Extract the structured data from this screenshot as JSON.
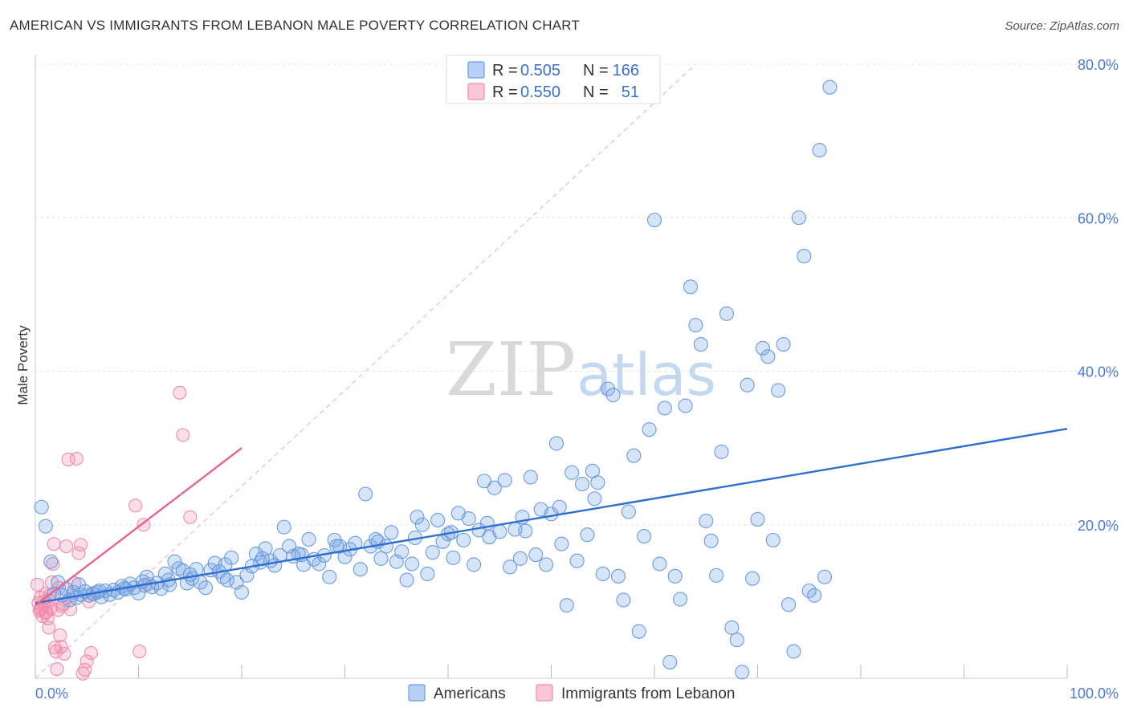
{
  "header": {
    "title": "AMERICAN VS IMMIGRANTS FROM LEBANON MALE POVERTY CORRELATION CHART",
    "source": "Source: ZipAtlas.com"
  },
  "watermark": {
    "zip": "ZIP",
    "atlas": "atlas"
  },
  "legend": {
    "rows": [
      {
        "r_label": "R =",
        "r_value": "0.505",
        "n_label": "N =",
        "n_value": "166",
        "color": "#6a9be0"
      },
      {
        "r_label": "R =",
        "r_value": "0.550",
        "n_label": "N =",
        "n_value": "51",
        "color": "#f08cab"
      }
    ]
  },
  "chart_data": {
    "type": "scatter",
    "title": "AMERICAN VS IMMIGRANTS FROM LEBANON MALE POVERTY CORRELATION CHART",
    "xlabel": "",
    "ylabel": "Male Poverty",
    "xlim": [
      0,
      100
    ],
    "ylim": [
      0,
      80
    ],
    "x_tick_labels": [
      "0.0%",
      "100.0%"
    ],
    "y_ticks": [
      20,
      40,
      60,
      80
    ],
    "y_tick_labels": [
      "20.0%",
      "40.0%",
      "60.0%",
      "80.0%"
    ],
    "colors": {
      "americans": "#6a9be0",
      "lebanon": "#f08cab",
      "americans_line": "#2f6fd0",
      "lebanon_line": "#e8648f"
    },
    "series": [
      {
        "name": "Americans",
        "r": 0.505,
        "n": 166,
        "trend": {
          "x": [
            0,
            100
          ],
          "y": [
            9.8,
            32.5
          ]
        },
        "points": [
          [
            0.6,
            22.3
          ],
          [
            1.0,
            19.8
          ],
          [
            1.5,
            15.2
          ],
          [
            1.8,
            11.0
          ],
          [
            2.2,
            12.5
          ],
          [
            2.6,
            10.8
          ],
          [
            3.0,
            11.6
          ],
          [
            3.3,
            10.2
          ],
          [
            3.7,
            11.2
          ],
          [
            4.0,
            10.5
          ],
          [
            4.4,
            10.9
          ],
          [
            4.8,
            11.3
          ],
          [
            5.2,
            10.8
          ],
          [
            5.6,
            11.0
          ],
          [
            6.0,
            11.2
          ],
          [
            6.4,
            10.6
          ],
          [
            6.8,
            11.4
          ],
          [
            7.2,
            10.9
          ],
          [
            7.6,
            11.5
          ],
          [
            8.0,
            11.2
          ],
          [
            8.4,
            12.0
          ],
          [
            8.8,
            11.6
          ],
          [
            9.2,
            12.3
          ],
          [
            9.6,
            11.8
          ],
          [
            10.0,
            11.1
          ],
          [
            10.4,
            12.6
          ],
          [
            10.8,
            13.2
          ],
          [
            11.3,
            11.9
          ],
          [
            11.8,
            12.4
          ],
          [
            12.2,
            11.7
          ],
          [
            12.6,
            13.6
          ],
          [
            13.0,
            12.2
          ],
          [
            13.5,
            15.2
          ],
          [
            13.9,
            14.3
          ],
          [
            14.3,
            14.0
          ],
          [
            14.7,
            12.4
          ],
          [
            15.2,
            13.0
          ],
          [
            15.6,
            14.2
          ],
          [
            16.0,
            12.5
          ],
          [
            16.5,
            11.8
          ],
          [
            17.0,
            14.1
          ],
          [
            17.4,
            15.0
          ],
          [
            17.8,
            13.9
          ],
          [
            18.2,
            13.2
          ],
          [
            18.6,
            12.8
          ],
          [
            19.0,
            15.7
          ],
          [
            19.5,
            12.5
          ],
          [
            20.0,
            11.2
          ],
          [
            20.5,
            13.4
          ],
          [
            21.0,
            14.6
          ],
          [
            21.4,
            16.2
          ],
          [
            21.8,
            15.1
          ],
          [
            22.3,
            16.9
          ],
          [
            22.8,
            15.3
          ],
          [
            23.2,
            14.7
          ],
          [
            23.7,
            16.0
          ],
          [
            24.1,
            19.7
          ],
          [
            24.6,
            17.2
          ],
          [
            25.0,
            15.9
          ],
          [
            25.5,
            16.2
          ],
          [
            26.0,
            14.8
          ],
          [
            26.5,
            18.1
          ],
          [
            27.0,
            15.5
          ],
          [
            27.5,
            14.9
          ],
          [
            28.0,
            16.0
          ],
          [
            28.5,
            13.2
          ],
          [
            29.0,
            18.0
          ],
          [
            29.5,
            17.2
          ],
          [
            30.0,
            15.8
          ],
          [
            30.5,
            16.8
          ],
          [
            31.0,
            17.6
          ],
          [
            31.5,
            14.2
          ],
          [
            32.0,
            24.0
          ],
          [
            32.5,
            17.2
          ],
          [
            33.0,
            18.1
          ],
          [
            33.5,
            15.6
          ],
          [
            34.0,
            17.2
          ],
          [
            34.5,
            19.0
          ],
          [
            35.0,
            15.2
          ],
          [
            35.5,
            16.5
          ],
          [
            36.0,
            12.8
          ],
          [
            36.5,
            14.9
          ],
          [
            37.0,
            21.0
          ],
          [
            37.5,
            20.0
          ],
          [
            38.0,
            13.6
          ],
          [
            38.5,
            16.4
          ],
          [
            39.0,
            20.6
          ],
          [
            39.5,
            17.8
          ],
          [
            40.0,
            18.8
          ],
          [
            40.5,
            15.7
          ],
          [
            41.0,
            21.5
          ],
          [
            41.5,
            18.0
          ],
          [
            42.0,
            20.8
          ],
          [
            42.5,
            14.8
          ],
          [
            43.0,
            19.3
          ],
          [
            43.5,
            25.7
          ],
          [
            44.0,
            18.4
          ],
          [
            44.5,
            24.8
          ],
          [
            45.0,
            19.1
          ],
          [
            45.5,
            25.8
          ],
          [
            46.0,
            14.5
          ],
          [
            46.5,
            19.4
          ],
          [
            47.0,
            15.6
          ],
          [
            47.5,
            19.2
          ],
          [
            48.0,
            26.2
          ],
          [
            48.5,
            16.1
          ],
          [
            49.0,
            22.0
          ],
          [
            49.5,
            14.8
          ],
          [
            50.0,
            21.4
          ],
          [
            50.5,
            30.6
          ],
          [
            51.0,
            17.5
          ],
          [
            51.5,
            9.5
          ],
          [
            52.0,
            26.8
          ],
          [
            52.5,
            15.3
          ],
          [
            53.0,
            25.3
          ],
          [
            53.5,
            18.7
          ],
          [
            54.0,
            27.0
          ],
          [
            54.5,
            25.5
          ],
          [
            55.0,
            13.6
          ],
          [
            55.5,
            37.7
          ],
          [
            56.0,
            36.9
          ],
          [
            56.5,
            13.3
          ],
          [
            57.0,
            10.2
          ],
          [
            57.5,
            21.7
          ],
          [
            58.0,
            29.0
          ],
          [
            58.5,
            6.1
          ],
          [
            59.0,
            18.5
          ],
          [
            59.5,
            32.4
          ],
          [
            60.0,
            59.7
          ],
          [
            60.5,
            14.9
          ],
          [
            61.0,
            35.2
          ],
          [
            61.5,
            2.1
          ],
          [
            62.0,
            13.3
          ],
          [
            62.5,
            10.3
          ],
          [
            63.0,
            35.5
          ],
          [
            63.5,
            51.0
          ],
          [
            64.0,
            46.0
          ],
          [
            64.5,
            43.5
          ],
          [
            65.0,
            20.5
          ],
          [
            65.5,
            17.9
          ],
          [
            66.0,
            13.4
          ],
          [
            66.5,
            29.5
          ],
          [
            67.0,
            47.5
          ],
          [
            67.5,
            6.6
          ],
          [
            68.0,
            5.0
          ],
          [
            68.5,
            0.8
          ],
          [
            69.0,
            38.2
          ],
          [
            69.5,
            13.0
          ],
          [
            70.0,
            20.7
          ],
          [
            70.5,
            43.0
          ],
          [
            71.0,
            41.9
          ],
          [
            71.5,
            18.0
          ],
          [
            72.0,
            37.5
          ],
          [
            72.5,
            43.5
          ],
          [
            73.0,
            9.6
          ],
          [
            73.5,
            3.5
          ],
          [
            74.0,
            60.0
          ],
          [
            74.5,
            55.0
          ],
          [
            75.0,
            11.4
          ],
          [
            75.5,
            10.8
          ],
          [
            76.0,
            68.8
          ],
          [
            76.5,
            13.2
          ],
          [
            77.0,
            77.0
          ],
          [
            4.2,
            12.2
          ],
          [
            6.2,
            11.4
          ],
          [
            8.6,
            11.7
          ],
          [
            10.6,
            12.1
          ],
          [
            12.9,
            12.8
          ],
          [
            15.0,
            13.5
          ],
          [
            18.4,
            14.8
          ],
          [
            22.0,
            15.6
          ],
          [
            25.8,
            16.1
          ],
          [
            29.2,
            17.2
          ],
          [
            33.2,
            17.8
          ],
          [
            36.8,
            18.3
          ],
          [
            40.3,
            19.0
          ],
          [
            43.8,
            20.2
          ],
          [
            47.2,
            21.0
          ],
          [
            50.8,
            22.3
          ],
          [
            54.2,
            23.4
          ]
        ]
      },
      {
        "name": "Immigrants from Lebanon",
        "r": 0.55,
        "n": 51,
        "trend": {
          "x": [
            0,
            20
          ],
          "y": [
            9.5,
            30.0
          ]
        },
        "points": [
          [
            0.2,
            12.2
          ],
          [
            0.3,
            9.8
          ],
          [
            0.4,
            8.8
          ],
          [
            0.5,
            10.5
          ],
          [
            0.6,
            9.2
          ],
          [
            0.7,
            8.1
          ],
          [
            0.8,
            10.0
          ],
          [
            0.9,
            9.5
          ],
          [
            1.0,
            11.0
          ],
          [
            1.1,
            8.6
          ],
          [
            1.2,
            7.8
          ],
          [
            1.3,
            6.6
          ],
          [
            1.4,
            10.8
          ],
          [
            1.5,
            9.1
          ],
          [
            1.6,
            12.5
          ],
          [
            1.7,
            14.9
          ],
          [
            1.8,
            17.5
          ],
          [
            1.9,
            4.0
          ],
          [
            2.0,
            3.5
          ],
          [
            2.1,
            1.2
          ],
          [
            2.2,
            8.9
          ],
          [
            2.3,
            11.8
          ],
          [
            2.4,
            5.6
          ],
          [
            2.5,
            4.1
          ],
          [
            2.6,
            9.4
          ],
          [
            2.8,
            3.2
          ],
          [
            3.0,
            17.2
          ],
          [
            3.2,
            28.5
          ],
          [
            3.4,
            9.0
          ],
          [
            3.6,
            10.8
          ],
          [
            3.8,
            12.4
          ],
          [
            4.0,
            28.6
          ],
          [
            4.2,
            16.3
          ],
          [
            4.4,
            17.4
          ],
          [
            4.6,
            0.6
          ],
          [
            4.8,
            1.1
          ],
          [
            5.0,
            2.2
          ],
          [
            5.2,
            10.0
          ],
          [
            5.4,
            3.3
          ],
          [
            5.6,
            11.1
          ],
          [
            9.7,
            22.5
          ],
          [
            10.1,
            3.5
          ],
          [
            10.5,
            20.0
          ],
          [
            11.0,
            12.3
          ],
          [
            14.0,
            37.2
          ],
          [
            14.3,
            31.7
          ],
          [
            15.0,
            21.0
          ],
          [
            1.0,
            8.5
          ],
          [
            0.5,
            9.0
          ],
          [
            1.3,
            10.2
          ],
          [
            2.7,
            9.7
          ]
        ]
      }
    ],
    "bottom_legend": [
      "Americans",
      "Immigrants from Lebanon"
    ]
  }
}
